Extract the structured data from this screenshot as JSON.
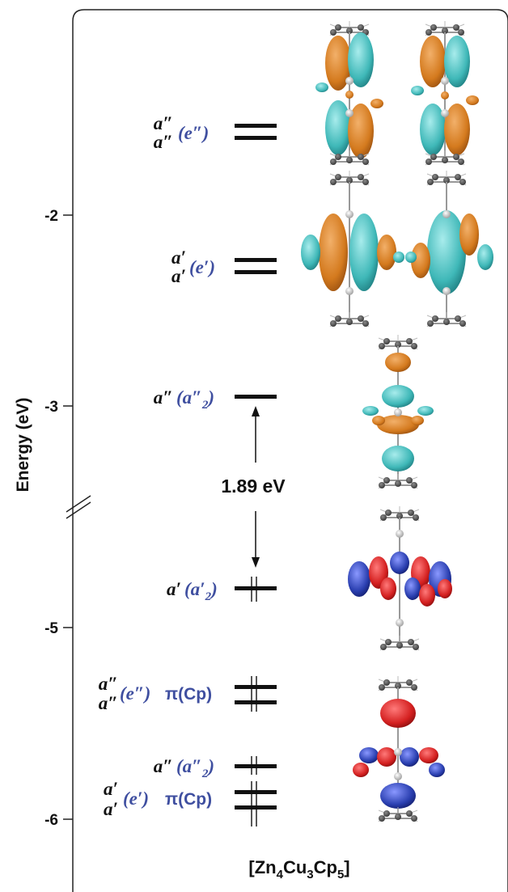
{
  "axis": {
    "title": "Energy (eV)",
    "ticks": [
      "-2",
      "-3",
      "-5",
      "-6"
    ]
  },
  "levels": [
    {
      "id": "e2-pair",
      "black": [
        "a″",
        "a″"
      ],
      "blue": "(e″)",
      "pi": ""
    },
    {
      "id": "e1-pair",
      "black": [
        "a′",
        "a′"
      ],
      "blue": "(e′)",
      "pi": ""
    },
    {
      "id": "lumo",
      "black": [
        "a″"
      ],
      "blue": "(a″",
      "sub": "2",
      "close": ")"
    },
    {
      "id": "homo",
      "black": [
        "a′"
      ],
      "blue": "(a′",
      "sub": "2",
      "close": ")"
    },
    {
      "id": "cp-e2",
      "black": [
        "a″",
        "a″"
      ],
      "blue": "(e″)",
      "pi": "π(Cp)"
    },
    {
      "id": "cp-a2",
      "black": [
        "a″"
      ],
      "blue": "(a″",
      "sub": "2",
      "close": ")"
    },
    {
      "id": "cp-e1",
      "black": [
        "a′",
        "a′"
      ],
      "blue": "(e′)",
      "pi": "π(Cp)"
    }
  ],
  "gap": {
    "value": "1.89 eV"
  },
  "compound": {
    "prefix": "[Zn",
    "n1": "4",
    "mid": "Cu",
    "n2": "3",
    "cp": "Cp",
    "n3": "5",
    "close": "]"
  },
  "colors": {
    "orbital_orange": "#d47a1e",
    "orbital_cyan": "#3fb8b8",
    "orbital_red": "#d42020",
    "orbital_blue": "#2a3fb0",
    "label_blue": "#3f4fa0",
    "frame": "#222222"
  }
}
